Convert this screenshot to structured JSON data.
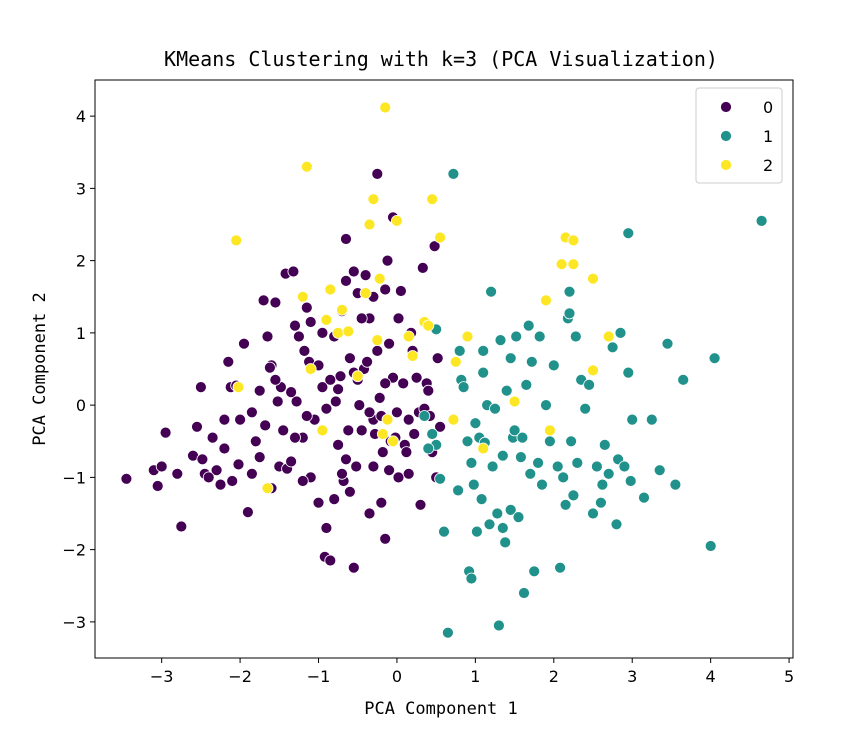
{
  "chart_data": {
    "type": "scatter",
    "title": "KMeans Clustering with k=3 (PCA Visualization)",
    "xlabel": "PCA Component 1",
    "ylabel": "PCA Component 2",
    "xlim": [
      -3.85,
      5.05
    ],
    "ylim": [
      -3.5,
      4.5
    ],
    "xticks": [
      -3,
      -2,
      -1,
      0,
      1,
      2,
      3,
      4,
      5
    ],
    "yticks": [
      -3,
      -2,
      -1,
      0,
      1,
      2,
      3,
      4
    ],
    "grid": false,
    "legend_position": "top-right",
    "series": [
      {
        "name": "0",
        "color": "#440154",
        "points": [
          [
            -3.45,
            -1.02
          ],
          [
            -3.1,
            -0.9
          ],
          [
            -3.05,
            -1.12
          ],
          [
            -3.0,
            -0.85
          ],
          [
            -2.95,
            -0.38
          ],
          [
            -2.8,
            -0.95
          ],
          [
            -2.75,
            -1.68
          ],
          [
            -2.6,
            -0.7
          ],
          [
            -2.5,
            0.25
          ],
          [
            -2.48,
            -0.75
          ],
          [
            -2.45,
            -0.95
          ],
          [
            -2.3,
            -0.9
          ],
          [
            -2.25,
            -1.1
          ],
          [
            -2.2,
            -0.2
          ],
          [
            -2.2,
            -0.6
          ],
          [
            -2.15,
            0.6
          ],
          [
            -2.12,
            0.25
          ],
          [
            -2.1,
            -1.05
          ],
          [
            -2.05,
            0.27
          ],
          [
            -2.02,
            -0.82
          ],
          [
            -2.0,
            -0.2
          ],
          [
            -1.95,
            0.85
          ],
          [
            -1.9,
            -1.48
          ],
          [
            -1.85,
            -0.95
          ],
          [
            -1.8,
            -0.5
          ],
          [
            -1.75,
            -0.72
          ],
          [
            -1.7,
            1.45
          ],
          [
            -1.68,
            -0.28
          ],
          [
            -1.6,
            0.55
          ],
          [
            -1.55,
            1.42
          ],
          [
            -1.52,
            0.05
          ],
          [
            -1.5,
            -0.85
          ],
          [
            -1.48,
            0.25
          ],
          [
            -1.45,
            -0.35
          ],
          [
            -1.42,
            1.82
          ],
          [
            -1.4,
            -0.88
          ],
          [
            -1.35,
            -0.78
          ],
          [
            -1.32,
            1.85
          ],
          [
            -1.3,
            1.1
          ],
          [
            -1.28,
            0.05
          ],
          [
            -1.25,
            0.95
          ],
          [
            -1.2,
            -0.45
          ],
          [
            -1.18,
            0.75
          ],
          [
            -1.15,
            1.35
          ],
          [
            -1.12,
            0.6
          ],
          [
            -1.1,
            -1.0
          ],
          [
            -1.05,
            -0.2
          ],
          [
            -1.0,
            -1.35
          ],
          [
            -0.95,
            1.0
          ],
          [
            -0.92,
            -2.1
          ],
          [
            -0.9,
            -1.7
          ],
          [
            -0.85,
            -2.15
          ],
          [
            -0.8,
            -1.3
          ],
          [
            -0.78,
            0.05
          ],
          [
            -0.75,
            -0.55
          ],
          [
            -0.72,
            0.4
          ],
          [
            -0.7,
            1.3
          ],
          [
            -0.68,
            -1.05
          ],
          [
            -0.65,
            2.3
          ],
          [
            -0.62,
            -0.35
          ],
          [
            -0.6,
            -1.2
          ],
          [
            -0.55,
            0.45
          ],
          [
            -0.52,
            -0.85
          ],
          [
            -0.5,
            1.55
          ],
          [
            -0.48,
            0.0
          ],
          [
            -0.45,
            -0.35
          ],
          [
            -0.42,
            0.5
          ],
          [
            -0.38,
            0.6
          ],
          [
            -0.35,
            1.2
          ],
          [
            -0.3,
            -0.2
          ],
          [
            -0.28,
            -0.4
          ],
          [
            -0.25,
            0.75
          ],
          [
            -0.22,
            0.1
          ],
          [
            -0.2,
            -0.15
          ],
          [
            -0.18,
            -0.65
          ],
          [
            -0.15,
            1.6
          ],
          [
            -0.12,
            2.0
          ],
          [
            -0.1,
            0.85
          ],
          [
            -0.08,
            -0.5
          ],
          [
            -0.05,
            0.38
          ],
          [
            -0.02,
            -0.45
          ],
          [
            0.0,
            -0.1
          ],
          [
            0.02,
            -1.0
          ],
          [
            0.05,
            1.58
          ],
          [
            0.08,
            0.3
          ],
          [
            0.1,
            -0.55
          ],
          [
            0.12,
            -0.65
          ],
          [
            0.15,
            -0.95
          ],
          [
            0.18,
            1.0
          ],
          [
            0.2,
            0.75
          ],
          [
            0.22,
            -0.4
          ],
          [
            0.25,
            0.38
          ],
          [
            0.28,
            -0.1
          ],
          [
            0.3,
            -1.38
          ],
          [
            0.33,
            1.9
          ],
          [
            0.35,
            -0.05
          ],
          [
            0.38,
            0.3
          ],
          [
            0.4,
            0.2
          ],
          [
            0.42,
            -0.15
          ],
          [
            0.45,
            -0.65
          ],
          [
            0.48,
            2.2
          ],
          [
            0.5,
            -1.0
          ],
          [
            0.52,
            0.65
          ],
          [
            0.55,
            -0.3
          ],
          [
            -1.62,
            0.52
          ],
          [
            -0.95,
            0.25
          ],
          [
            -1.2,
            -1.05
          ],
          [
            -0.65,
            -0.75
          ],
          [
            -1.35,
            0.18
          ],
          [
            -0.3,
            -0.85
          ],
          [
            -0.8,
            0.95
          ],
          [
            -1.0,
            0.55
          ],
          [
            -0.5,
            0.35
          ],
          [
            -2.35,
            -0.45
          ],
          [
            -0.15,
            0.3
          ],
          [
            -0.4,
            1.8
          ],
          [
            -0.25,
            3.2
          ],
          [
            -0.05,
            2.6
          ],
          [
            -0.55,
            -2.25
          ],
          [
            -0.35,
            -1.5
          ],
          [
            -0.15,
            -1.85
          ],
          [
            -0.2,
            -1.35
          ],
          [
            -0.7,
            -0.95
          ],
          [
            -1.85,
            -0.1
          ],
          [
            -1.6,
            -1.15
          ],
          [
            -1.3,
            -0.45
          ],
          [
            -1.15,
            -0.15
          ],
          [
            -0.9,
            -0.05
          ],
          [
            0.02,
            1.2
          ],
          [
            -1.1,
            1.15
          ],
          [
            -1.55,
            0.35
          ],
          [
            -2.55,
            -0.3
          ],
          [
            -2.4,
            -1.0
          ],
          [
            -0.65,
            1.72
          ],
          [
            -0.45,
            1.2
          ],
          [
            -0.35,
            -0.1
          ],
          [
            -0.6,
            0.65
          ],
          [
            -0.85,
            0.35
          ],
          [
            -0.1,
            -0.9
          ],
          [
            0.15,
            -0.2
          ],
          [
            -0.75,
            0.22
          ],
          [
            -1.75,
            0.2
          ],
          [
            -1.65,
            0.95
          ],
          [
            -0.3,
            1.5
          ],
          [
            -0.55,
            1.85
          ]
        ]
      },
      {
        "name": "1",
        "color": "#21918c",
        "points": [
          [
            0.45,
            -0.4
          ],
          [
            0.5,
            -0.55
          ],
          [
            0.55,
            -1.02
          ],
          [
            0.6,
            -1.75
          ],
          [
            0.65,
            -3.15
          ],
          [
            0.72,
            3.2
          ],
          [
            0.78,
            -1.18
          ],
          [
            0.82,
            0.35
          ],
          [
            0.85,
            0.25
          ],
          [
            0.9,
            -0.5
          ],
          [
            0.92,
            -2.3
          ],
          [
            0.95,
            -2.4
          ],
          [
            0.98,
            -1.1
          ],
          [
            1.0,
            -0.25
          ],
          [
            1.02,
            -1.75
          ],
          [
            1.05,
            -0.45
          ],
          [
            1.08,
            -1.3
          ],
          [
            1.1,
            0.75
          ],
          [
            1.12,
            -0.52
          ],
          [
            1.15,
            0.0
          ],
          [
            1.18,
            -1.65
          ],
          [
            1.2,
            1.57
          ],
          [
            1.22,
            -0.85
          ],
          [
            1.25,
            -0.05
          ],
          [
            1.28,
            -1.5
          ],
          [
            1.3,
            -3.05
          ],
          [
            1.32,
            0.9
          ],
          [
            1.35,
            -0.7
          ],
          [
            1.38,
            -1.9
          ],
          [
            1.4,
            0.2
          ],
          [
            1.45,
            -1.45
          ],
          [
            1.48,
            -0.45
          ],
          [
            1.5,
            -0.35
          ],
          [
            1.52,
            0.95
          ],
          [
            1.55,
            -1.55
          ],
          [
            1.58,
            -0.72
          ],
          [
            1.6,
            -0.45
          ],
          [
            1.62,
            -2.6
          ],
          [
            1.65,
            0.28
          ],
          [
            1.68,
            1.1
          ],
          [
            1.72,
            0.6
          ],
          [
            1.75,
            -2.3
          ],
          [
            1.8,
            -0.8
          ],
          [
            1.82,
            0.95
          ],
          [
            1.85,
            -1.1
          ],
          [
            1.9,
            0.0
          ],
          [
            1.95,
            -0.5
          ],
          [
            2.0,
            0.55
          ],
          [
            2.05,
            -0.85
          ],
          [
            2.08,
            -2.25
          ],
          [
            2.12,
            -1.0
          ],
          [
            2.15,
            -1.38
          ],
          [
            2.18,
            1.2
          ],
          [
            2.2,
            1.57
          ],
          [
            2.22,
            -0.5
          ],
          [
            2.25,
            -1.25
          ],
          [
            2.28,
            0.95
          ],
          [
            2.3,
            -0.8
          ],
          [
            2.35,
            0.35
          ],
          [
            2.4,
            -0.05
          ],
          [
            2.45,
            0.28
          ],
          [
            2.5,
            -1.5
          ],
          [
            2.55,
            -0.85
          ],
          [
            2.6,
            -1.35
          ],
          [
            2.62,
            -1.1
          ],
          [
            2.65,
            -0.55
          ],
          [
            2.7,
            -0.95
          ],
          [
            2.75,
            0.8
          ],
          [
            2.8,
            -1.65
          ],
          [
            2.82,
            -0.75
          ],
          [
            2.85,
            1.0
          ],
          [
            2.9,
            -0.85
          ],
          [
            2.95,
            0.45
          ],
          [
            2.98,
            -1.05
          ],
          [
            3.0,
            -0.2
          ],
          [
            3.15,
            -1.28
          ],
          [
            3.25,
            -0.2
          ],
          [
            3.35,
            -0.9
          ],
          [
            3.45,
            0.85
          ],
          [
            3.55,
            -1.1
          ],
          [
            3.65,
            0.35
          ],
          [
            4.0,
            -1.95
          ],
          [
            4.05,
            0.65
          ],
          [
            4.65,
            2.55
          ],
          [
            2.95,
            2.38
          ],
          [
            1.35,
            -1.7
          ],
          [
            0.95,
            -0.8
          ],
          [
            1.1,
            0.45
          ],
          [
            0.8,
            0.75
          ],
          [
            1.45,
            0.65
          ],
          [
            1.7,
            -0.95
          ],
          [
            0.5,
            1.05
          ],
          [
            0.35,
            -0.15
          ],
          [
            0.4,
            -0.6
          ],
          [
            2.2,
            1.27
          ]
        ]
      },
      {
        "name": "2",
        "color": "#fde725",
        "points": [
          [
            -2.05,
            2.28
          ],
          [
            -2.02,
            0.25
          ],
          [
            -1.65,
            -1.15
          ],
          [
            -1.2,
            1.5
          ],
          [
            -1.15,
            3.3
          ],
          [
            -1.1,
            0.5
          ],
          [
            -0.95,
            -0.35
          ],
          [
            -0.9,
            1.18
          ],
          [
            -0.85,
            1.6
          ],
          [
            -0.75,
            1.0
          ],
          [
            -0.7,
            1.32
          ],
          [
            -0.62,
            1.02
          ],
          [
            -0.4,
            1.55
          ],
          [
            -0.35,
            2.5
          ],
          [
            -0.3,
            2.85
          ],
          [
            -0.25,
            0.9
          ],
          [
            -0.22,
            1.75
          ],
          [
            -0.18,
            -0.4
          ],
          [
            -0.15,
            4.12
          ],
          [
            -0.12,
            -0.2
          ],
          [
            -0.05,
            -0.5
          ],
          [
            0.0,
            2.55
          ],
          [
            0.15,
            0.95
          ],
          [
            0.2,
            0.68
          ],
          [
            0.35,
            1.15
          ],
          [
            0.45,
            2.85
          ],
          [
            0.55,
            2.32
          ],
          [
            0.75,
            0.6
          ],
          [
            0.9,
            0.95
          ],
          [
            1.1,
            -0.6
          ],
          [
            1.5,
            0.05
          ],
          [
            1.9,
            1.45
          ],
          [
            1.95,
            -0.35
          ],
          [
            2.1,
            1.95
          ],
          [
            2.15,
            2.32
          ],
          [
            2.25,
            2.28
          ],
          [
            2.25,
            1.95
          ],
          [
            2.5,
            1.75
          ],
          [
            2.5,
            0.48
          ],
          [
            2.7,
            0.95
          ],
          [
            -0.5,
            0.4
          ],
          [
            0.72,
            -0.2
          ],
          [
            0.4,
            1.1
          ]
        ]
      }
    ]
  }
}
